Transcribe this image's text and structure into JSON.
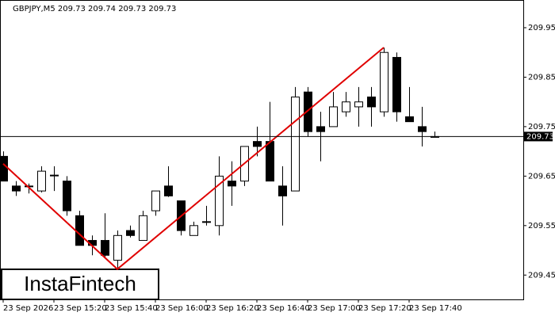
{
  "chart_data": {
    "type": "candlestick",
    "title": "GBPJPY,M5  209.73 209.74 209.73 209.73",
    "categories": [
      "23 Sep 2026",
      null,
      null,
      null,
      "23 Sep 15:20",
      null,
      null,
      null,
      "23 Sep 15:40",
      null,
      null,
      null,
      "23 Sep 16:00",
      null,
      null,
      null,
      "23 Sep 16:20",
      null,
      null,
      null,
      "23 Sep 16:40",
      null,
      null,
      null,
      "23 Sep 17:00",
      null,
      null,
      null,
      "23 Sep 17:20",
      null,
      null,
      null,
      "23 Sep 17:40",
      null,
      null
    ],
    "open": [
      209.69,
      209.63,
      209.63,
      209.62,
      209.652,
      209.64,
      209.57,
      209.52,
      209.52,
      209.48,
      209.54,
      209.52,
      209.58,
      209.63,
      209.6,
      209.53,
      209.558,
      209.55,
      209.64,
      209.64,
      209.72,
      209.72,
      209.63,
      209.62,
      209.82,
      209.75,
      209.75,
      209.78,
      209.79,
      209.81,
      209.78,
      209.89,
      209.77,
      209.75,
      209.73
    ],
    "high": [
      209.7,
      209.64,
      209.635,
      209.67,
      209.67,
      209.65,
      209.58,
      209.53,
      209.575,
      209.54,
      209.55,
      209.58,
      209.62,
      209.67,
      209.6,
      209.558,
      209.59,
      209.69,
      209.68,
      209.71,
      209.75,
      209.8,
      209.67,
      209.83,
      209.83,
      209.78,
      209.82,
      209.82,
      209.83,
      209.83,
      209.91,
      209.9,
      209.83,
      209.79,
      209.74
    ],
    "low": [
      209.64,
      209.61,
      209.615,
      209.617,
      209.62,
      209.57,
      209.51,
      209.49,
      209.485,
      209.46,
      209.526,
      209.52,
      209.57,
      209.608,
      209.53,
      209.53,
      209.55,
      209.53,
      209.59,
      209.63,
      209.69,
      209.64,
      209.55,
      209.62,
      209.73,
      209.68,
      209.75,
      209.77,
      209.75,
      209.75,
      209.77,
      209.76,
      209.76,
      209.71,
      209.73
    ],
    "close": [
      209.64,
      209.62,
      209.63,
      209.66,
      209.652,
      209.58,
      209.51,
      209.51,
      209.49,
      209.53,
      209.53,
      209.57,
      209.62,
      209.61,
      209.54,
      209.55,
      209.558,
      209.65,
      209.63,
      209.71,
      209.71,
      209.64,
      209.61,
      209.81,
      209.74,
      209.74,
      209.79,
      209.8,
      209.8,
      209.79,
      209.9,
      209.78,
      209.76,
      209.74,
      209.73
    ],
    "up_color": "#ffffff",
    "down_color": "#000000",
    "trend_line": {
      "color": "#e00000",
      "x": [
        0,
        9,
        30
      ],
      "values": [
        209.675,
        209.462,
        209.91
      ]
    },
    "current_price": 209.73,
    "ylim": [
      209.4008,
      210.006
    ],
    "yticks": [
      209.45,
      209.55,
      209.65,
      209.75,
      209.85,
      209.95
    ],
    "watermark": "InstaFintech"
  }
}
